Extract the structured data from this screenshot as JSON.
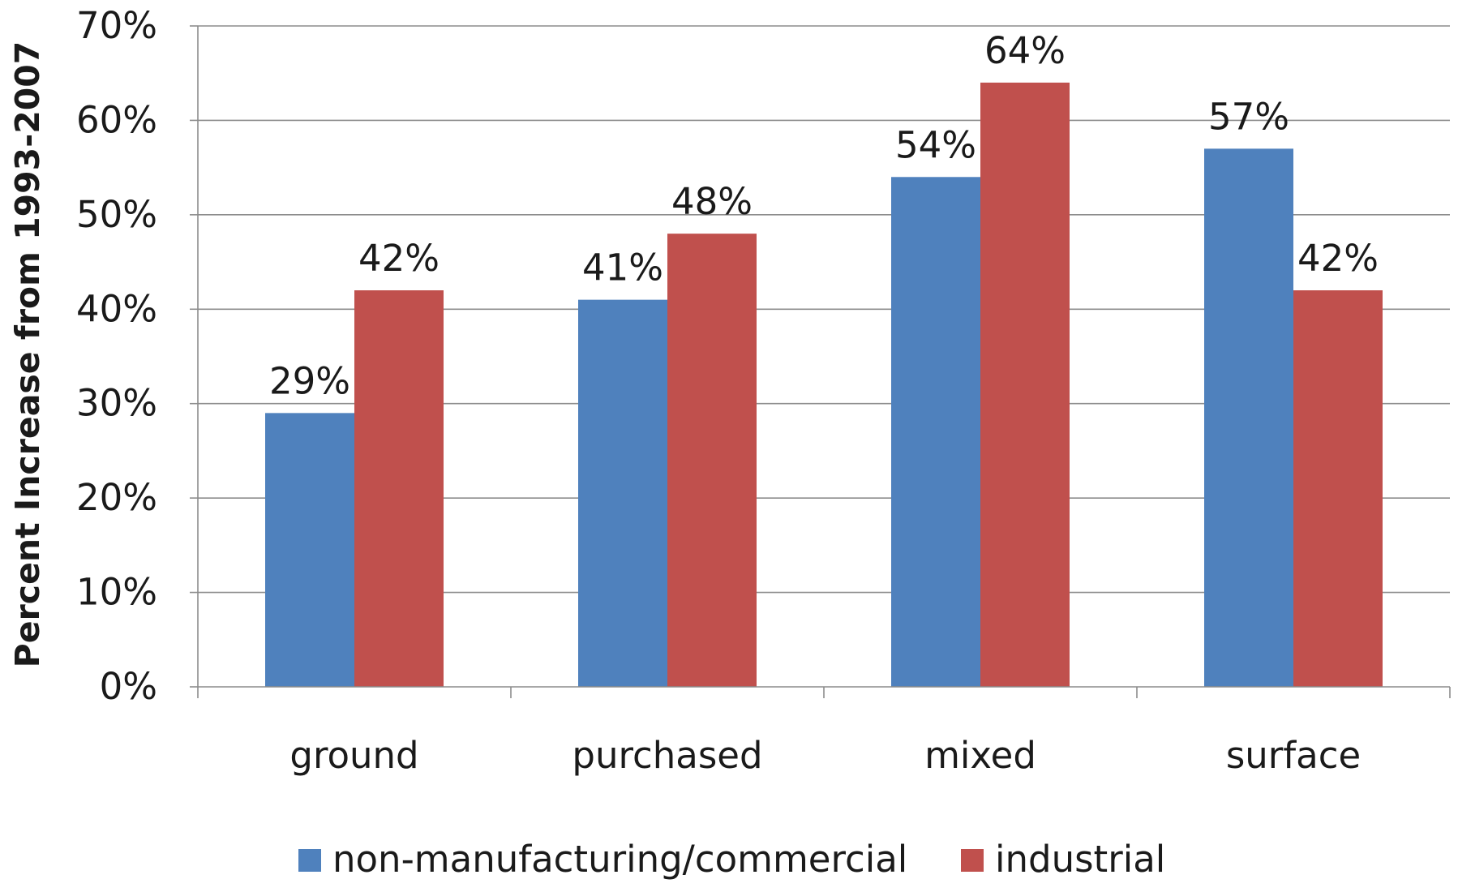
{
  "chart_data": {
    "type": "bar",
    "ylabel": "Percent Increase from 1993-2007",
    "xlabel": "",
    "categories": [
      "ground",
      "purchased",
      "mixed",
      "surface"
    ],
    "series": [
      {
        "name": "non-manufacturing/commercial",
        "color": "#4f81bd",
        "values": [
          29,
          41,
          54,
          57
        ],
        "labels": [
          "29%",
          "41%",
          "54%",
          "57%"
        ]
      },
      {
        "name": "industrial",
        "color": "#c0504d",
        "values": [
          42,
          48,
          64,
          42
        ],
        "labels": [
          "42%",
          "48%",
          "64%",
          "42%"
        ]
      }
    ],
    "ylim": [
      0,
      70
    ],
    "yticks": [
      {
        "value": 0,
        "label": "0%"
      },
      {
        "value": 10,
        "label": "10%"
      },
      {
        "value": 20,
        "label": "20%"
      },
      {
        "value": 30,
        "label": "30%"
      },
      {
        "value": 40,
        "label": "40%"
      },
      {
        "value": 50,
        "label": "50%"
      },
      {
        "value": 60,
        "label": "60%"
      },
      {
        "value": 70,
        "label": "70%"
      }
    ],
    "grid": true,
    "legend": "bottom"
  }
}
